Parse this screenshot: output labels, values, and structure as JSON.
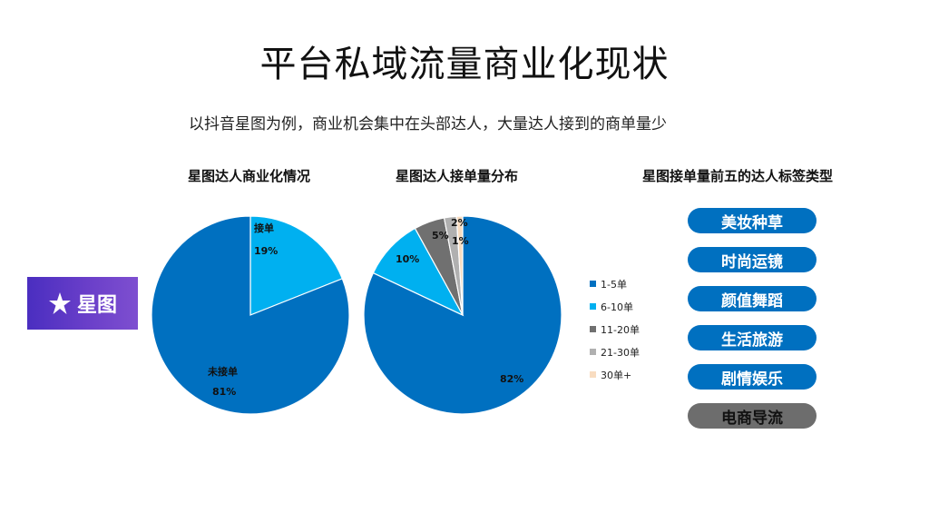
{
  "title": "平台私域流量商业化现状",
  "subtitle": "以抖音星图为例，商业机会集中在头部达人，大量达人接到的商单量少",
  "logo": {
    "text": "星图",
    "icon": "star-icon"
  },
  "colors": {
    "blue": "#0070c0",
    "light_blue": "#00b0f0",
    "dark_gray": "#707070",
    "light_gray": "#b0b0b0",
    "peach": "#f8dcc0",
    "tag_gray": "#6d6d6d"
  },
  "chart_data": [
    {
      "type": "pie",
      "title": "星图达人商业化情况",
      "categories": [
        "接单",
        "未接单"
      ],
      "values": [
        19,
        81
      ],
      "labels": [
        "19%",
        "81%"
      ],
      "colors": [
        "#00b0f0",
        "#0070c0"
      ]
    },
    {
      "type": "pie",
      "title": "星图达人接单量分布",
      "categories": [
        "1-5单",
        "6-10单",
        "11-20单",
        "21-30单",
        "30单+"
      ],
      "values": [
        82,
        10,
        5,
        2,
        1
      ],
      "labels": [
        "82%",
        "10%",
        "5%",
        "2%",
        "1%"
      ],
      "colors": [
        "#0070c0",
        "#00b0f0",
        "#707070",
        "#b0b0b0",
        "#f8dcc0"
      ],
      "legend_position": "right"
    }
  ],
  "tags_panel": {
    "title": "星图接单量前五的达人标签类型",
    "tags": [
      {
        "label": "美妆种草",
        "style": "blue"
      },
      {
        "label": "时尚运镜",
        "style": "blue"
      },
      {
        "label": "颜值舞蹈",
        "style": "blue"
      },
      {
        "label": "生活旅游",
        "style": "blue"
      },
      {
        "label": "剧情娱乐",
        "style": "blue"
      },
      {
        "label": "电商导流",
        "style": "gray"
      }
    ]
  }
}
